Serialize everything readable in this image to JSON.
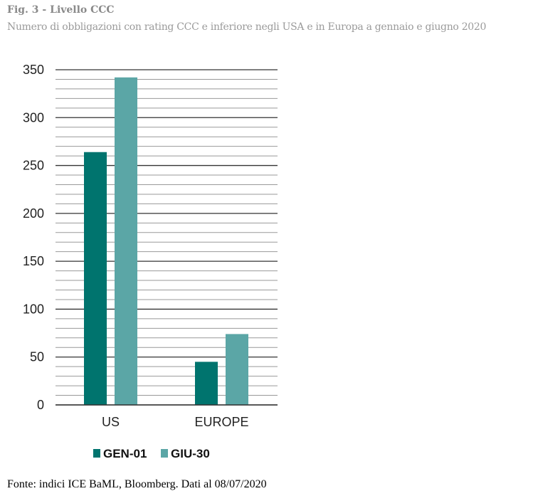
{
  "title": "Fig. 3 - Livello CCC",
  "subtitle": "Numero di obbligazioni con rating CCC e inferiore negli USA e in Europa a gennaio e giugno 2020",
  "source": "Fonte: indici ICE BaML, Bloomberg. Dati al 08/07/2020",
  "chart_data": {
    "type": "bar",
    "title": "Fig. 3 - Livello CCC",
    "categories": [
      "US",
      "EUROPE"
    ],
    "series": [
      {
        "name": "GEN-01",
        "values": [
          264,
          45
        ],
        "color": "#00746E"
      },
      {
        "name": "GIU-30",
        "values": [
          342,
          74
        ],
        "color": "#5BA6A6"
      }
    ],
    "ylim": [
      0,
      350
    ],
    "yticks": [
      0,
      50,
      100,
      150,
      200,
      250,
      300,
      350
    ],
    "minor_grid_step": 10,
    "grid": true,
    "legend": "bottom",
    "xlabel": "",
    "ylabel": ""
  }
}
